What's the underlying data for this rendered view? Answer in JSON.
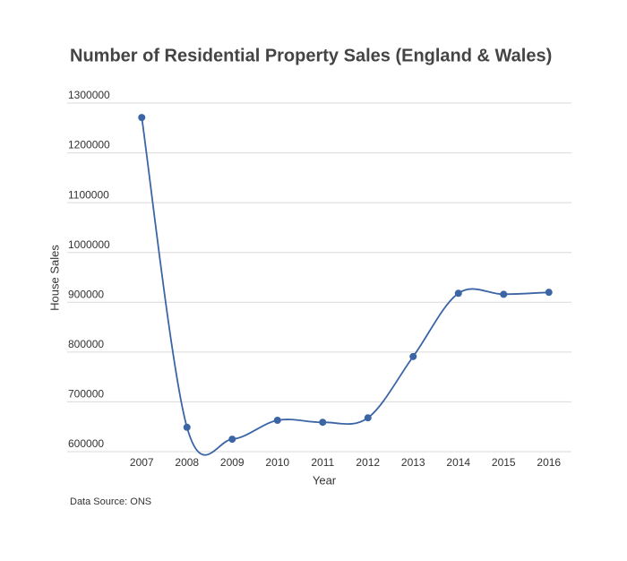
{
  "chart_data": {
    "type": "line",
    "title": "Number of Residential Property Sales (England & Wales)",
    "x_label": "Year",
    "y_label": "House Sales",
    "source": "Data Source: ONS",
    "categories": [
      "2007",
      "2008",
      "2009",
      "2010",
      "2011",
      "2012",
      "2013",
      "2014",
      "2015",
      "2016"
    ],
    "series": [
      {
        "name": "House Sales",
        "color": "#3b65a5",
        "values": [
          1271000,
          649000,
          625000,
          663000,
          659000,
          668000,
          791000,
          918000,
          916000,
          920000
        ]
      }
    ],
    "ylim": [
      600000,
      1300000
    ],
    "yticks": [
      600000,
      700000,
      800000,
      900000,
      1000000,
      1100000,
      1200000,
      1300000
    ],
    "grid": true,
    "smooth": true
  }
}
